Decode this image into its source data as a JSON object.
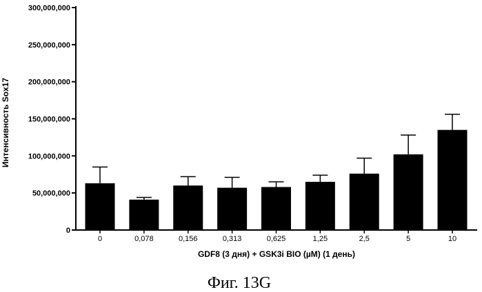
{
  "chart_data": {
    "type": "bar",
    "categories": [
      "0",
      "0,078",
      "0,156",
      "0,313",
      "0,625",
      "1,25",
      "2,5",
      "5",
      "10"
    ],
    "values": [
      63000000,
      41000000,
      60000000,
      57000000,
      58000000,
      65000000,
      76000000,
      102000000,
      135000000
    ],
    "errors": [
      22000000,
      3000000,
      12000000,
      14000000,
      7000000,
      9000000,
      21000000,
      26000000,
      21000000
    ],
    "xlabel": "GDF8 (3 дня) + GSK3i BIO (µM) (1 день)",
    "ylabel": "Интенсивность Sox17",
    "ylim": [
      0,
      300000000
    ],
    "yticks": [
      0,
      50000000,
      100000000,
      150000000,
      200000000,
      250000000,
      300000000
    ],
    "ytick_labels": [
      "0",
      "50,000,000",
      "100,000,000",
      "150,000,000",
      "200,000,000",
      "250,000,000",
      "300,000,000"
    ],
    "bar_color": "#000000",
    "grid": false
  },
  "caption": "Фиг. 13G"
}
